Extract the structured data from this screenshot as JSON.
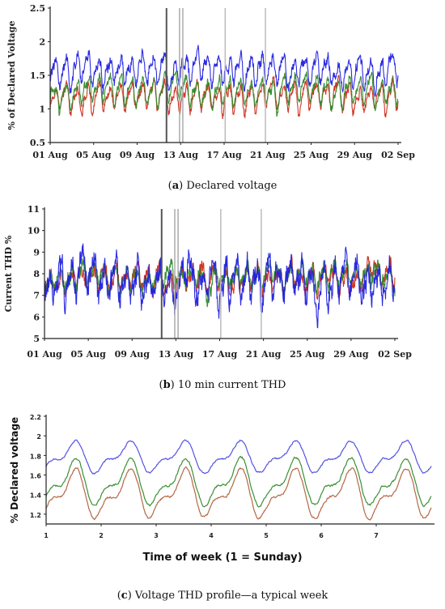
{
  "captions": {
    "a": {
      "letter": "a",
      "text": " Declared voltage"
    },
    "b": {
      "letter": "b",
      "text": " 10 min current THD"
    },
    "c": {
      "letter": "c",
      "text": " Voltage THD profile—a typical week"
    }
  },
  "chart_data": [
    {
      "id": "a",
      "type": "line",
      "ylabel": "% of Declared Voltage",
      "ylim": [
        0.5,
        2.5
      ],
      "yticks": [
        "0.5",
        "1",
        "1.5",
        "2",
        "2.5"
      ],
      "xlim": [
        1,
        33
      ],
      "xticks": [
        {
          "x": 1,
          "label": "01 Aug"
        },
        {
          "x": 5,
          "label": "05 Aug"
        },
        {
          "x": 9,
          "label": "09 Aug"
        },
        {
          "x": 13,
          "label": "13 Aug"
        },
        {
          "x": 17,
          "label": "17 Aug"
        },
        {
          "x": 21,
          "label": "21 Aug"
        },
        {
          "x": 25,
          "label": "25 Aug"
        },
        {
          "x": 29,
          "label": "29 Aug"
        },
        {
          "x": 33,
          "label": "02 Sep"
        }
      ],
      "markers": [
        {
          "x": 11.7,
          "color": "#555555"
        },
        {
          "x": 12.9,
          "color": "#aaaaaa"
        },
        {
          "x": 13.2,
          "color": "#aaaaaa"
        },
        {
          "x": 17.1,
          "color": "#bbbbbb"
        },
        {
          "x": 20.8,
          "color": "#bbbbbb"
        }
      ],
      "series": [
        {
          "color": "#cc2b1a",
          "base": 1.18,
          "amp": 0.22,
          "noise": 0.07,
          "period": 1
        },
        {
          "color": "#2f8a2a",
          "base": 1.28,
          "amp": 0.22,
          "noise": 0.07,
          "period": 1
        },
        {
          "color": "#2020e0",
          "base": 1.58,
          "amp": 0.22,
          "noise": 0.09,
          "period": 1
        }
      ]
    },
    {
      "id": "b",
      "type": "line",
      "ylabel": "Current THD %",
      "ylim": [
        5,
        11
      ],
      "yticks": [
        "5",
        "6",
        "7",
        "8",
        "9",
        "10",
        "11"
      ],
      "xlim": [
        1,
        33
      ],
      "xticks": [
        {
          "x": 1,
          "label": "01 Aug"
        },
        {
          "x": 5,
          "label": "05 Aug"
        },
        {
          "x": 9,
          "label": "09 Aug"
        },
        {
          "x": 13,
          "label": "13 Aug"
        },
        {
          "x": 17,
          "label": "17 Aug"
        },
        {
          "x": 21,
          "label": "21 Aug"
        },
        {
          "x": 25,
          "label": "25 Aug"
        },
        {
          "x": 29,
          "label": "29 Aug"
        },
        {
          "x": 33,
          "label": "02 Sep"
        }
      ],
      "markers": [
        {
          "x": 11.7,
          "color": "#555555"
        },
        {
          "x": 12.9,
          "color": "#aaaaaa"
        },
        {
          "x": 13.2,
          "color": "#aaaaaa"
        },
        {
          "x": 17.1,
          "color": "#bbbbbb"
        },
        {
          "x": 20.8,
          "color": "#bbbbbb"
        }
      ],
      "series": [
        {
          "color": "#cc2b1a",
          "base": 7.8,
          "amp": 0.5,
          "noise": 0.35,
          "period": 1
        },
        {
          "color": "#2f8a2a",
          "base": 7.8,
          "amp": 0.5,
          "noise": 0.35,
          "period": 1
        },
        {
          "color": "#2020e0",
          "base": 7.7,
          "amp": 0.8,
          "noise": 0.6,
          "period": 1
        }
      ]
    },
    {
      "id": "c",
      "type": "line",
      "ylabel": "% Declared voltage",
      "xlabel": "Time of week (1 = Sunday)",
      "ylim": [
        1.1,
        2.2
      ],
      "yticks": [
        "1.2",
        "1.4",
        "1.6",
        "1.8",
        "2",
        "2.2"
      ],
      "ytick_values": [
        1.2,
        1.4,
        1.6,
        1.8,
        2.0,
        2.2
      ],
      "xlim": [
        1,
        8
      ],
      "xticks": [
        {
          "x": 1,
          "label": "1"
        },
        {
          "x": 2,
          "label": "2"
        },
        {
          "x": 3,
          "label": "3"
        },
        {
          "x": 4,
          "label": "4"
        },
        {
          "x": 5,
          "label": "5"
        },
        {
          "x": 6,
          "label": "6"
        },
        {
          "x": 7,
          "label": "7"
        }
      ],
      "markers": [],
      "series": [
        {
          "color": "#b0603a",
          "base": 1.4,
          "amp": 0.26,
          "noise": 0.02,
          "period": 1
        },
        {
          "color": "#2f8a2a",
          "base": 1.52,
          "amp": 0.25,
          "noise": 0.02,
          "period": 1
        },
        {
          "color": "#4a4ae0",
          "base": 1.78,
          "amp": 0.17,
          "noise": 0.015,
          "period": 1
        }
      ]
    }
  ]
}
